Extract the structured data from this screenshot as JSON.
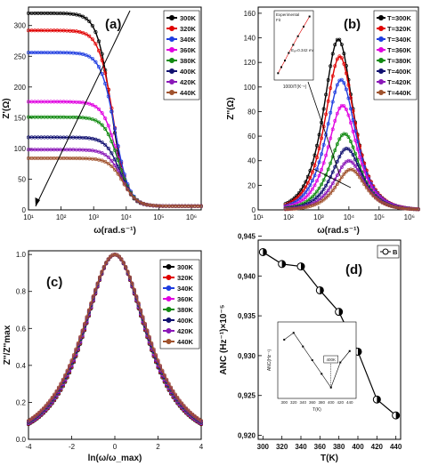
{
  "chart_data": [
    {
      "id": "a",
      "type": "scatter",
      "panel_label": "(a)",
      "xlabel": "ω(rad.s⁻¹)",
      "ylabel": "Z'(Ω)",
      "xscale": "log",
      "xlim": [
        10,
        2000000
      ],
      "ylim": [
        0,
        330
      ],
      "xticks": [
        "10¹",
        "10²",
        "10³",
        "10⁴",
        "10⁵",
        "10⁶"
      ],
      "yticks": [
        0,
        50,
        100,
        150,
        200,
        250,
        300
      ],
      "legend_position": "top-right",
      "series": [
        {
          "name": "300K",
          "color": "#000000",
          "low": 314,
          "fc": 3500
        },
        {
          "name": "320K",
          "color": "#e00000",
          "low": 286,
          "fc": 4000
        },
        {
          "name": "340K",
          "color": "#1f3de0",
          "low": 250,
          "fc": 4500
        },
        {
          "name": "360K",
          "color": "#e000e0",
          "low": 170,
          "fc": 5200
        },
        {
          "name": "380K",
          "color": "#118a11",
          "low": 145,
          "fc": 5800
        },
        {
          "name": "400K",
          "color": "#101070",
          "low": 112,
          "fc": 6500
        },
        {
          "name": "420K",
          "color": "#8a18b8",
          "low": 92,
          "fc": 7200
        },
        {
          "name": "440K",
          "color": "#a0522d",
          "low": 78,
          "fc": 8000
        }
      ]
    },
    {
      "id": "b",
      "type": "scatter",
      "panel_label": "(b)",
      "xlabel": "ω(rad.s⁻¹)",
      "ylabel": "Z''(Ω)",
      "xscale": "log",
      "xlim": [
        10,
        2000000
      ],
      "ylim": [
        0,
        165
      ],
      "xticks": [
        "10¹",
        "10²",
        "10³",
        "10⁴",
        "10⁵",
        "10⁶"
      ],
      "yticks": [
        0,
        20,
        40,
        60,
        80,
        100,
        120,
        140,
        160
      ],
      "legend_position": "top-right",
      "series": [
        {
          "name": "T=300K",
          "color": "#000000",
          "peak": 139,
          "fpk": 4500
        },
        {
          "name": "T=320K",
          "color": "#e00000",
          "peak": 125,
          "fpk": 5000
        },
        {
          "name": "T=340K",
          "color": "#1f3de0",
          "peak": 106,
          "fpk": 5500
        },
        {
          "name": "T=360K",
          "color": "#e000e0",
          "peak": 85,
          "fpk": 6200
        },
        {
          "name": "T=380K",
          "color": "#118a11",
          "peak": 62,
          "fpk": 7200
        },
        {
          "name": "T=400K",
          "color": "#101070",
          "peak": 50,
          "fpk": 8500
        },
        {
          "name": "T=420K",
          "color": "#8a18b8",
          "peak": 40,
          "fpk": 10000
        },
        {
          "name": "T=440K",
          "color": "#a0522d",
          "peak": 33,
          "fpk": 11500
        }
      ],
      "inset": {
        "xlabel": "1000/T(K⁻¹)",
        "legend": [
          "Experimental",
          "Fit"
        ],
        "annotation": "Eₐ=0.342 eV",
        "x": [
          2.27,
          2.38,
          2.5,
          2.63,
          2.78,
          2.94,
          3.13,
          3.33
        ],
        "y": [
          0.1,
          0.22,
          0.35,
          0.5,
          0.66,
          0.83,
          1.02,
          1.22
        ]
      }
    },
    {
      "id": "c",
      "type": "scatter",
      "panel_label": "(c)",
      "xlabel": "ln(ω/ω_max)",
      "ylabel": "Z''/Z''max",
      "xlim": [
        -4,
        4
      ],
      "ylim": [
        0,
        1.02
      ],
      "xticks": [
        -4,
        -2,
        0,
        2,
        4
      ],
      "yticks": [
        "0.0",
        "0.2",
        "0.4",
        "0.6",
        "0.8",
        "1.0"
      ],
      "legend_position": "top-right",
      "series": [
        {
          "name": "300K",
          "color": "#000000"
        },
        {
          "name": "320K",
          "color": "#e00000"
        },
        {
          "name": "340K",
          "color": "#1f3de0"
        },
        {
          "name": "360K",
          "color": "#e000e0"
        },
        {
          "name": "380K",
          "color": "#118a11"
        },
        {
          "name": "400K",
          "color": "#101070"
        },
        {
          "name": "420K",
          "color": "#8a18b8"
        },
        {
          "name": "440K",
          "color": "#a0522d"
        }
      ]
    },
    {
      "id": "d",
      "type": "line",
      "panel_label": "(d)",
      "xlabel": "T(K)",
      "ylabel": "ANC (Hz⁻¹)×10⁻⁵",
      "xlim": [
        295,
        445
      ],
      "ylim": [
        0.9195,
        0.9445
      ],
      "xticks": [
        300,
        320,
        340,
        360,
        380,
        400,
        420,
        440
      ],
      "yticks": [
        "0,920",
        "0,925",
        "0,930",
        "0,935",
        "0,940",
        "0,945"
      ],
      "legend": "B",
      "legend_position": "top-right",
      "x": [
        300,
        320,
        340,
        360,
        380,
        400,
        420,
        440
      ],
      "y": [
        0.943,
        0.9415,
        0.9412,
        0.9382,
        0.9355,
        0.9305,
        0.9245,
        0.9225
      ],
      "inset": {
        "xlabel": "T(K)",
        "ylabel": "ANC(Hz⁻¹)",
        "annotation": "400K",
        "x": [
          300,
          320,
          340,
          360,
          380,
          400,
          420,
          440
        ],
        "y": [
          0.9435,
          0.945,
          0.942,
          0.939,
          0.936,
          0.933,
          0.9385,
          0.941
        ]
      }
    }
  ]
}
